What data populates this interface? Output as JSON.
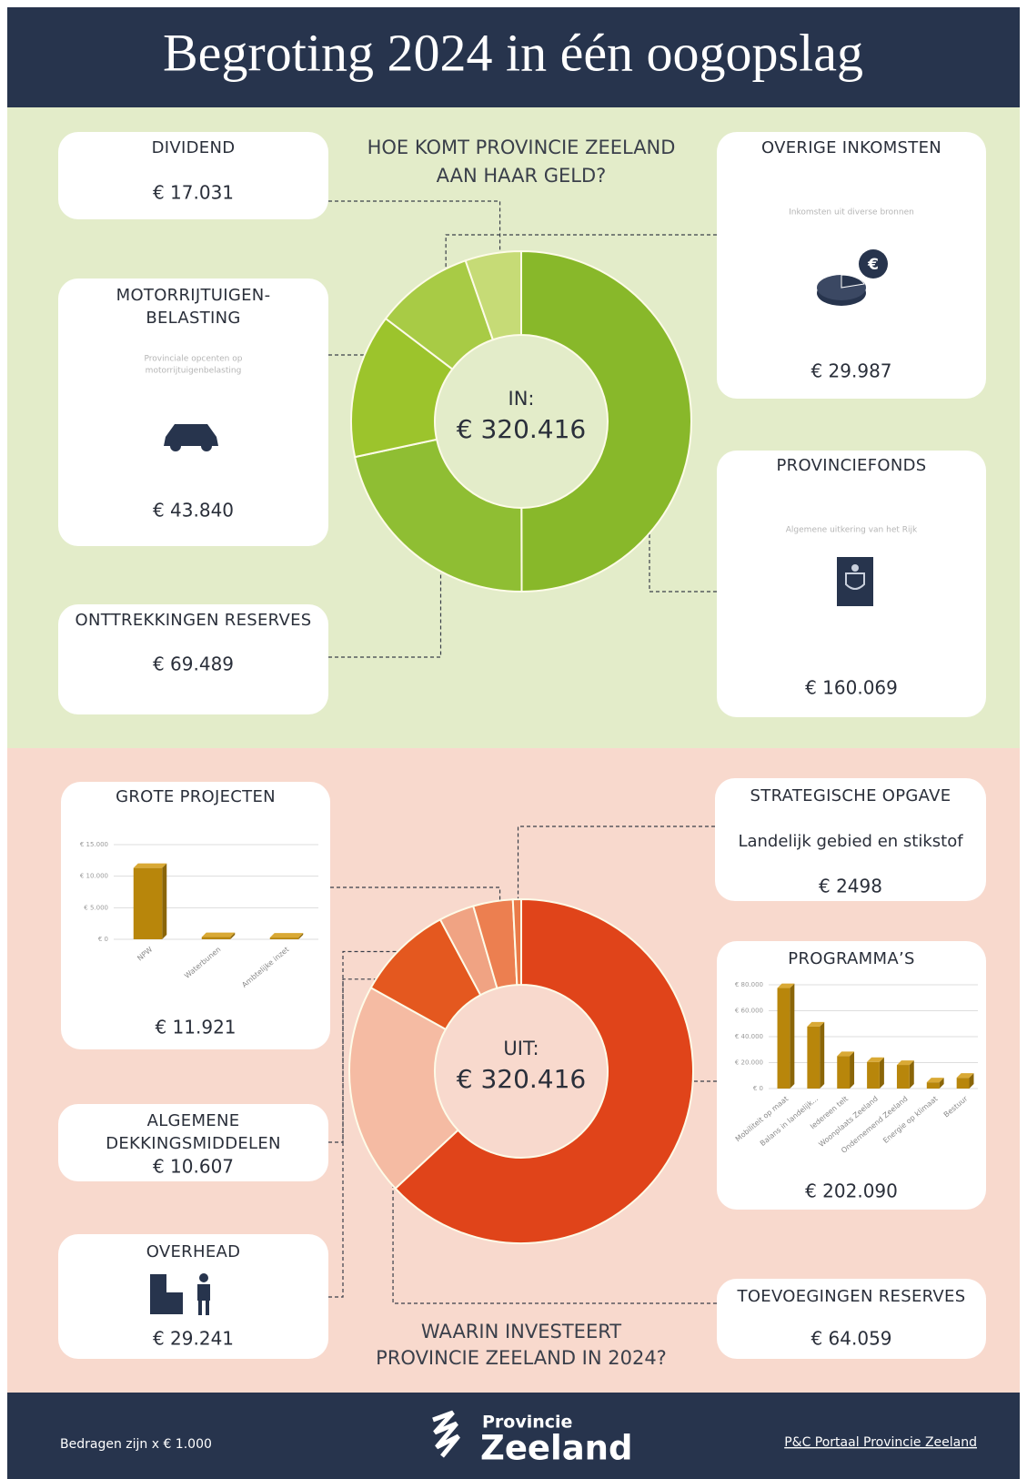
{
  "title": "Begroting 2024 in één oogopslag",
  "income": {
    "heading": [
      "HOE KOMT PROVINCIE ZEELAND",
      "AAN HAAR GELD?"
    ],
    "center_label": "IN:",
    "total": {
      "value": 320416,
      "label": "€ 320.416"
    },
    "items": [
      {
        "name": [
          "PROVINCIEFONDS"
        ],
        "description": [
          "Algemene uitkering van het Rijk"
        ],
        "value": 160069,
        "label": "€ 160.069",
        "color": "#88b82a"
      },
      {
        "name": [
          "ONTTREKKINGEN RESERVES"
        ],
        "value": 69489,
        "label": "€ 69.489",
        "color": "#8fbe33"
      },
      {
        "name": [
          "MOTORRIJTUIGEN-",
          "BELASTING"
        ],
        "description": [
          "Provinciale opcenten op",
          "motorrijtuigenbelasting"
        ],
        "value": 43840,
        "label": "€ 43.840",
        "color": "#9cc42c"
      },
      {
        "name": [
          "OVERIGE INKOMSTEN"
        ],
        "description": [
          "Inkomsten uit diverse bronnen"
        ],
        "value": 29987,
        "label": "€ 29.987",
        "color": "#a8cb45"
      },
      {
        "name": [
          "DIVIDEND"
        ],
        "value": 17031,
        "label": "€ 17.031",
        "color": "#c6db76"
      }
    ]
  },
  "expenses": {
    "heading": [
      "WAARIN INVESTEERT",
      "PROVINCIE ZEELAND IN 2024?"
    ],
    "center_label": "UIT:",
    "total": {
      "value": 320416,
      "label": "€ 320.416"
    },
    "items": [
      {
        "name": [
          "PROGRAMMA’S"
        ],
        "value": 202090,
        "label": "€ 202.090",
        "color": "#e0441a",
        "chart": {
          "type": "bar",
          "categories": [
            "Mobiliteit op maat",
            "Balans in landelijk...",
            "Iedereen telt",
            "Woonplaats Zeeland",
            "Ondernemend Zeeland",
            "Energie op klimaat",
            "Bestuur"
          ],
          "values": [
            77500,
            47800,
            25000,
            20500,
            18200,
            4800,
            8290
          ],
          "color": "#b8860b",
          "ylim": [
            0,
            80000
          ],
          "yticks": [
            {
              "value": 0,
              "label": "€ 0"
            },
            {
              "value": 20000,
              "label": "€ 20.000"
            },
            {
              "value": 40000,
              "label": "€ 40.000"
            },
            {
              "value": 60000,
              "label": "€ 60.000"
            },
            {
              "value": 80000,
              "label": "€ 80.000"
            }
          ]
        }
      },
      {
        "name": [
          "TOEVOEGINGEN RESERVES"
        ],
        "value": 64059,
        "label": "€ 64.059",
        "color": "#f5bba3"
      },
      {
        "name": [
          "OVERHEAD"
        ],
        "value": 29241,
        "label": "€ 29.241",
        "color": "#e4581f"
      },
      {
        "name": [
          "ALGEMENE",
          "DEKKINGSMIDDELEN"
        ],
        "value": 10607,
        "label": "€ 10.607",
        "color": "#f0a383"
      },
      {
        "name": [
          "GROTE PROJECTEN"
        ],
        "value": 11921,
        "label": "€ 11.921",
        "color": "#ec7f50",
        "chart": {
          "type": "bar",
          "categories": [
            "NPW",
            "Waterbunen",
            "Ambtelijke inzet"
          ],
          "values": [
            11300,
            350,
            271
          ],
          "color": "#b8860b",
          "ylim": [
            0,
            15000
          ],
          "yticks": [
            {
              "value": 0,
              "label": "€ 0"
            },
            {
              "value": 5000,
              "label": "€ 5.000"
            },
            {
              "value": 10000,
              "label": "€ 10.000"
            },
            {
              "value": 15000,
              "label": "€ 15.000"
            }
          ]
        }
      },
      {
        "name": [
          "STRATEGISCHE OPGAVE"
        ],
        "subtitle": "Landelijk gebied en stikstof",
        "value": 2498,
        "label": "€ 2498",
        "color": "#ea7a48"
      }
    ]
  },
  "footer": {
    "note": "Bedragen zijn x € 1.000",
    "logo": [
      "Provincie",
      "Zeeland"
    ],
    "link": "P&C Portaal Provincie Zeeland"
  }
}
